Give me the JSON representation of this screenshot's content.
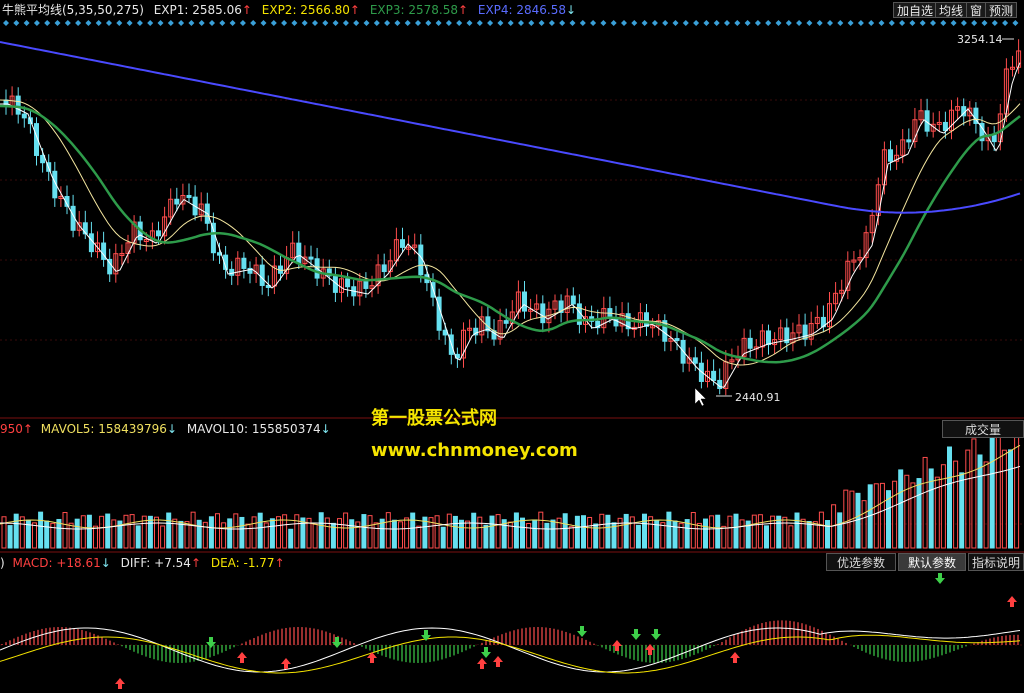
{
  "header": {
    "indicators": [
      {
        "text": "牛熊平均线(5,35,50,275)",
        "color": "#e8e8e8",
        "arrow": ""
      },
      {
        "text": "EXP1: 2585.06",
        "color": "#e8e8e8",
        "arrow": "↑"
      },
      {
        "text": "EXP2: 2566.80",
        "color": "#f5e400",
        "arrow": "↑"
      },
      {
        "text": "EXP3: 2578.58",
        "color": "#2e9b4a",
        "arrow": "↑"
      },
      {
        "text": "EXP4: 2846.58",
        "color": "#5a6cff",
        "arrow": "↓"
      }
    ],
    "buttons": [
      "加自选",
      "均线",
      "窗",
      "预测"
    ]
  },
  "price": {
    "high_label": "3254.14",
    "low_label": "2440.91",
    "colors": {
      "up": "#ff4d4d",
      "down": "#66e0f0",
      "ma5": "#ffffff",
      "ma35": "#f5e7a0",
      "ma50": "#2e9b4a",
      "ma275": "#4a4aff"
    }
  },
  "volume": {
    "header": [
      {
        "text": "950",
        "color": "#ff4040",
        "arrow": "↑"
      },
      {
        "text": "MAVOL5: 158439796",
        "color": "#f0e060",
        "arrow": "↓"
      },
      {
        "text": "MAVOL10: 155850374",
        "color": "#e8e8e8",
        "arrow": "↓"
      }
    ],
    "tab": "成交量"
  },
  "macd": {
    "header": [
      {
        "text": ")",
        "color": "#e8e8e8",
        "arrow": ""
      },
      {
        "text": "MACD: +18.61",
        "color": "#ff4040",
        "arrow": "↓"
      },
      {
        "text": "DIFF: +7.54",
        "color": "#e8e8e8",
        "arrow": "↑"
      },
      {
        "text": "DEA: -1.77",
        "color": "#f5e400",
        "arrow": "↑"
      }
    ],
    "tabs": [
      "优选参数",
      "默认参数",
      "指标说明"
    ]
  },
  "watermark": {
    "line1": "第一股票公式网",
    "line2": "www.chnmoney.com"
  }
}
